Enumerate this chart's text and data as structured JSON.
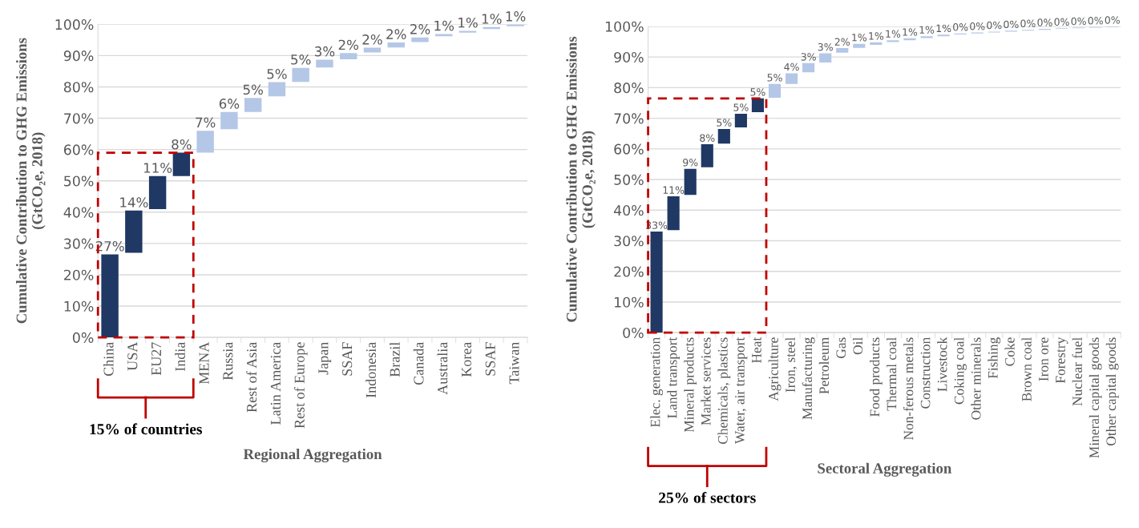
{
  "chart_data": [
    {
      "type": "bar",
      "xlabel": "Regional Aggregation",
      "ylabel": "Cumulative Contribution to GHG Emissions\n(GtCO₂e, 2018)",
      "categories": [
        "China",
        "USA",
        "EU27",
        "India",
        "MENA",
        "Russia",
        "Rest of Asia",
        "Latin America",
        "Rest of Europe",
        "Japan",
        "SSAF",
        "Indonesia",
        "Brazil",
        "Canada",
        "Australia",
        "Korea",
        "SSAF",
        "Taiwan"
      ],
      "values": [
        26.5,
        13.5,
        10.5,
        7.5,
        7,
        5.5,
        4.5,
        4.5,
        4.5,
        2.5,
        2,
        1.5,
        1.6,
        1.5,
        0.7,
        0.6,
        0.6,
        0.5
      ],
      "base": [
        0,
        27,
        41,
        51.5,
        59,
        66.5,
        72,
        77,
        81.6,
        86.2,
        88.8,
        91,
        92.6,
        94.3,
        96.2,
        97.3,
        98.5,
        99.4
      ],
      "colors": [
        "#203864",
        "#203864",
        "#203864",
        "#203864",
        "#b4c7e7",
        "#b4c7e7",
        "#b4c7e7",
        "#b4c7e7",
        "#b4c7e7",
        "#b4c7e7",
        "#b4c7e7",
        "#b4c7e7",
        "#b4c7e7",
        "#b4c7e7",
        "#b4c7e7",
        "#b4c7e7",
        "#b4c7e7",
        "#b4c7e7"
      ],
      "value_labels": [
        "27%",
        "14%",
        "11%",
        "8%",
        "7%",
        "6%",
        "5%",
        "5%",
        "5%",
        "3%",
        "2%",
        "2%",
        "2%",
        "2%",
        "1%",
        "1%",
        "1%",
        "1%"
      ],
      "ylim": [
        0,
        100
      ],
      "yticks": [
        {
          "value": 0,
          "label": "0%"
        },
        {
          "value": 10,
          "label": "10%"
        },
        {
          "value": 20,
          "label": "20%"
        },
        {
          "value": 30,
          "label": "30%"
        },
        {
          "value": 40,
          "label": "40%"
        },
        {
          "value": 50,
          "label": "50%"
        },
        {
          "value": 60,
          "label": "60%"
        },
        {
          "value": 70,
          "label": "70%"
        },
        {
          "value": 80,
          "label": "80%"
        },
        {
          "value": 90,
          "label": "90%"
        },
        {
          "value": 100,
          "label": "100%"
        }
      ],
      "grid": "y",
      "annotations": [
        "15% of countries"
      ]
    },
    {
      "type": "bar",
      "xlabel": "Sectoral Aggregation",
      "ylabel": "Cumulative Contribution to GHG Emissions\n(GtCO₂e, 2018)",
      "categories": [
        "Elec. generation",
        "Land transport",
        "Mineral products",
        "Market services",
        "Chemicals, plastics",
        "Water, air transport",
        "Heat",
        "Agriculture",
        "Iron, steel",
        "Manufacturing",
        "Petroleum",
        "Gas",
        "Oil",
        "Food products",
        "Thermal coal",
        "Non-ferous metals",
        "Construction",
        "Livestock",
        "Coking coal",
        "Other minerals",
        "Fishing",
        "Coke",
        "Brown coal",
        "Iron ore",
        "Forestry",
        "Nuclear fuel",
        "Mineral capital goods",
        "Other capital goods"
      ],
      "values": [
        33,
        11,
        8.5,
        7.5,
        4.8,
        4.5,
        4.5,
        4.5,
        3.5,
        3,
        3,
        1.5,
        1.3,
        0.8,
        0.6,
        0.6,
        0.6,
        0.5,
        0.3,
        0.3,
        0.3,
        0.3,
        0.3,
        0.3,
        0.2,
        0.2,
        0.2,
        0.2
      ],
      "base": [
        0,
        33.5,
        45,
        54,
        61.7,
        67,
        72,
        76.7,
        81.2,
        85,
        88.2,
        91.4,
        93,
        94,
        94.9,
        95.5,
        96.2,
        96.8,
        97.4,
        97.7,
        98,
        98.3,
        98.6,
        98.9,
        99.2,
        99.4,
        99.6,
        99.8
      ],
      "colors": [
        "#203864",
        "#203864",
        "#203864",
        "#203864",
        "#203864",
        "#203864",
        "#203864",
        "#b4c7e7",
        "#b4c7e7",
        "#b4c7e7",
        "#b4c7e7",
        "#b4c7e7",
        "#b4c7e7",
        "#b4c7e7",
        "#b4c7e7",
        "#b4c7e7",
        "#b4c7e7",
        "#b4c7e7",
        "#b4c7e7",
        "#b4c7e7",
        "#b4c7e7",
        "#b4c7e7",
        "#b4c7e7",
        "#b4c7e7",
        "#b4c7e7",
        "#b4c7e7",
        "#b4c7e7",
        "#b4c7e7"
      ],
      "value_labels": [
        "33%",
        "11%",
        "9%",
        "8%",
        "5%",
        "5%",
        "5%",
        "5%",
        "4%",
        "3%",
        "3%",
        "2%",
        "1%",
        "1%",
        "1%",
        "1%",
        "1%",
        "1%",
        "0%",
        "0%",
        "0%",
        "0%",
        "0%",
        "0%",
        "0%",
        "0%",
        "0%",
        "0%"
      ],
      "ylim": [
        0,
        100
      ],
      "yticks": [
        {
          "value": 0,
          "label": "0%"
        },
        {
          "value": 10,
          "label": "10%"
        },
        {
          "value": 20,
          "label": "20%"
        },
        {
          "value": 30,
          "label": "30%"
        },
        {
          "value": 40,
          "label": "40%"
        },
        {
          "value": 50,
          "label": "50%"
        },
        {
          "value": 60,
          "label": "60%"
        },
        {
          "value": 70,
          "label": "70%"
        },
        {
          "value": 80,
          "label": "80%"
        },
        {
          "value": 90,
          "label": "90%"
        },
        {
          "value": 100,
          "label": "100%"
        }
      ],
      "grid": "y",
      "annotations": [
        "25% of sectors"
      ]
    }
  ]
}
